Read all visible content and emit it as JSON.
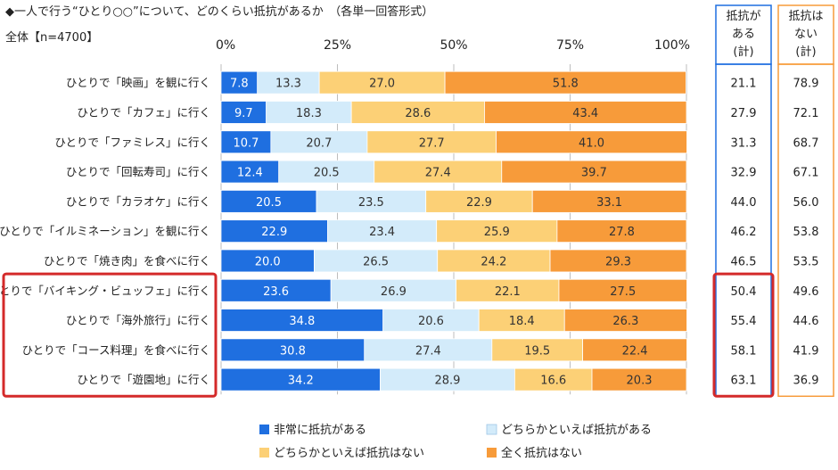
{
  "chart_data": {
    "type": "bar",
    "orientation": "horizontal",
    "stacked": "percent",
    "title": "◆一人で行う“ひとり○○”について、どのくらい抵抗があるか　（各単一回答形式）",
    "subtitle": "全体【n=4700】",
    "xlim": [
      0,
      100
    ],
    "x_ticks": [
      "0%",
      "25%",
      "50%",
      "75%",
      "100%"
    ],
    "grid": true,
    "legend_position": "bottom",
    "categories": [
      "ひとりで「映画」を観に行く",
      "ひとりで「カフェ」に行く",
      "ひとりで「ファミレス」に行く",
      "ひとりで「回転寿司」に行く",
      "ひとりで「カラオケ」に行く",
      "ひとりで「イルミネーション」を観に行く",
      "ひとりで「焼き肉」を食べに行く",
      "ひとりで「バイキング・ビュッフェ」に行く",
      "ひとりで「海外旅行」に行く",
      "ひとりで「コース料理」を食べに行く",
      "ひとりで「遊園地」に行く"
    ],
    "series": [
      {
        "name": "非常に抵抗がある",
        "color": "#1f6fe0",
        "values": [
          7.8,
          9.7,
          10.7,
          12.4,
          20.5,
          22.9,
          20.0,
          23.6,
          34.8,
          30.8,
          34.2
        ]
      },
      {
        "name": "どちらかといえば抵抗がある",
        "color": "#d3ebfa",
        "values": [
          13.3,
          18.3,
          20.7,
          20.5,
          23.5,
          23.4,
          26.5,
          26.9,
          20.6,
          27.4,
          28.9
        ]
      },
      {
        "name": "どちらかといえば抵抗はない",
        "color": "#fcd076",
        "values": [
          27.0,
          28.6,
          27.7,
          27.4,
          22.9,
          25.9,
          24.2,
          22.1,
          18.4,
          19.5,
          16.6
        ]
      },
      {
        "name": "全く抵抗はない",
        "color": "#f79b3a",
        "values": [
          51.8,
          43.4,
          41.0,
          39.7,
          33.1,
          27.8,
          29.3,
          27.5,
          26.3,
          22.4,
          20.3
        ]
      }
    ],
    "summary_columns": [
      {
        "header": [
          "抵抗が",
          "ある",
          "(計)"
        ],
        "color": "#1f6fe0",
        "values": [
          21.1,
          27.9,
          31.3,
          32.9,
          44.0,
          46.2,
          46.5,
          50.4,
          55.4,
          58.1,
          63.1
        ]
      },
      {
        "header": [
          "抵抗は",
          "ない",
          "(計)"
        ],
        "color": "#f79b3a",
        "values": [
          78.9,
          72.1,
          68.7,
          67.1,
          56.0,
          53.8,
          53.5,
          49.6,
          44.6,
          41.9,
          36.9
        ]
      }
    ],
    "highlighted_rows": [
      7,
      8,
      9,
      10
    ],
    "highlight_color": "#d42a2a"
  }
}
